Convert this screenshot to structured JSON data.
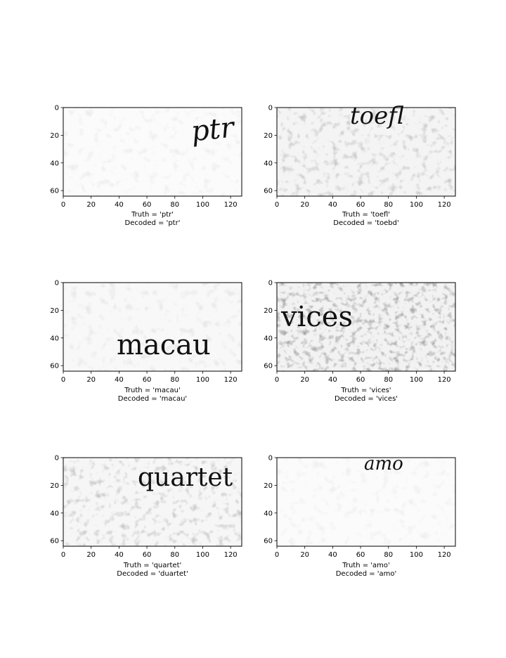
{
  "chart_data": [
    {
      "type": "image",
      "word": "ptr",
      "font_style": "script",
      "noise": "light",
      "truth_label": "Truth = 'ptr'",
      "decoded_label": "Decoded = 'ptr'",
      "xlim": [
        0,
        128
      ],
      "ylim": [
        64,
        0
      ],
      "xticks": [
        0,
        20,
        40,
        60,
        80,
        100,
        120
      ],
      "yticks": [
        0,
        20,
        40,
        60
      ]
    },
    {
      "type": "image",
      "word": "toefl",
      "font_style": "script",
      "noise": "medium",
      "truth_label": "Truth = 'toefl'",
      "decoded_label": "Decoded = 'toebd'",
      "xlim": [
        0,
        128
      ],
      "ylim": [
        64,
        0
      ],
      "xticks": [
        0,
        20,
        40,
        60,
        80,
        100,
        120
      ],
      "yticks": [
        0,
        20,
        40,
        60
      ]
    },
    {
      "type": "image",
      "word": "macau",
      "font_style": "serif",
      "noise": "light",
      "truth_label": "Truth = 'macau'",
      "decoded_label": "Decoded = 'macau'",
      "xlim": [
        0,
        128
      ],
      "ylim": [
        64,
        0
      ],
      "xticks": [
        0,
        20,
        40,
        60,
        80,
        100,
        120
      ],
      "yticks": [
        0,
        20,
        40,
        60
      ]
    },
    {
      "type": "image",
      "word": "vices",
      "font_style": "serif",
      "noise": "heavy",
      "truth_label": "Truth = 'vices'",
      "decoded_label": "Decoded = 'vices'",
      "xlim": [
        0,
        128
      ],
      "ylim": [
        64,
        0
      ],
      "xticks": [
        0,
        20,
        40,
        60,
        80,
        100,
        120
      ],
      "yticks": [
        0,
        20,
        40,
        60
      ]
    },
    {
      "type": "image",
      "word": "quartet",
      "font_style": "serif",
      "noise": "medium",
      "truth_label": "Truth = 'quartet'",
      "decoded_label": "Decoded = 'duartet'",
      "xlim": [
        0,
        128
      ],
      "ylim": [
        64,
        0
      ],
      "xticks": [
        0,
        20,
        40,
        60,
        80,
        100,
        120
      ],
      "yticks": [
        0,
        20,
        40,
        60
      ]
    },
    {
      "type": "image",
      "word": "amo",
      "font_style": "script",
      "noise": "light",
      "truth_label": "Truth = 'amo'",
      "decoded_label": "Decoded = 'amo'",
      "xlim": [
        0,
        128
      ],
      "ylim": [
        64,
        0
      ],
      "xticks": [
        0,
        20,
        40,
        60,
        80,
        100,
        120
      ],
      "yticks": [
        0,
        20,
        40,
        60
      ]
    }
  ]
}
